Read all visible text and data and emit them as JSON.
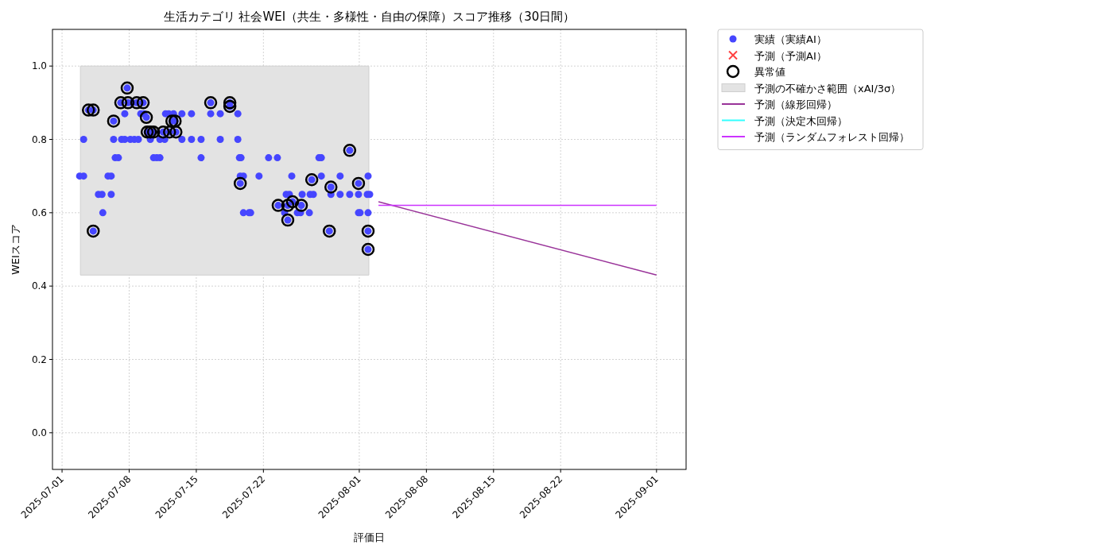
{
  "chart_data": {
    "type": "scatter",
    "title": "生活カテゴリ 社会WEI（共生・多様性・自由の保障）スコア推移（30日間）",
    "xlabel": "評価日",
    "ylabel": "WEIスコア",
    "xlim": [
      "2025-06-30",
      "2025-09-04T02:00"
    ],
    "ylim": [
      -0.1,
      1.1
    ],
    "xticks": [
      {
        "value": "2025-07-01",
        "label": "2025-07-01"
      },
      {
        "value": "2025-07-08",
        "label": "2025-07-08"
      },
      {
        "value": "2025-07-15",
        "label": "2025-07-15"
      },
      {
        "value": "2025-07-22",
        "label": "2025-07-22"
      },
      {
        "value": "2025-08-01",
        "label": "2025-08-01"
      },
      {
        "value": "2025-08-08",
        "label": "2025-08-08"
      },
      {
        "value": "2025-08-15",
        "label": "2025-08-15"
      },
      {
        "value": "2025-08-22",
        "label": "2025-08-22"
      },
      {
        "value": "2025-09-01",
        "label": "2025-09-01"
      }
    ],
    "yticks": [
      {
        "value": 0,
        "label": "0.0"
      },
      {
        "value": 0.2,
        "label": "0.2"
      },
      {
        "value": 0.4,
        "label": "0.4"
      },
      {
        "value": 0.6,
        "label": "0.6"
      },
      {
        "value": 0.8,
        "label": "0.8"
      },
      {
        "value": 1,
        "label": "1.0"
      }
    ],
    "grid": true,
    "legend": "top right",
    "series": [
      {
        "name": "実績（実績AI）",
        "marker": "circle",
        "color": "#4646ff",
        "x": [
          "2025-07-02T20:00",
          "2025-07-03T06:00",
          "2025-07-03T06:00",
          "2025-07-03T18:00",
          "2025-07-04T06:00",
          "2025-07-04T06:00",
          "2025-07-04T19:00",
          "2025-07-05T04:00",
          "2025-07-05T06:00",
          "2025-07-05T19:00",
          "2025-07-06T03:00",
          "2025-07-06T03:00",
          "2025-07-06T09:00",
          "2025-07-06T09:00",
          "2025-07-06T13:00",
          "2025-07-06T21:00",
          "2025-07-07T03:00",
          "2025-07-07T05:00",
          "2025-07-07T13:00",
          "2025-07-07T13:00",
          "2025-07-07T19:00",
          "2025-07-07T21:00",
          "2025-07-08T03:00",
          "2025-07-08T07:00",
          "2025-07-08T13:00",
          "2025-07-08T19:00",
          "2025-07-08T23:00",
          "2025-07-09T05:00",
          "2025-07-09T11:00",
          "2025-07-09T13:00",
          "2025-07-09T19:00",
          "2025-07-09T21:00",
          "2025-07-10T05:00",
          "2025-07-10T05:00",
          "2025-07-10T13:00",
          "2025-07-10T13:00",
          "2025-07-10T21:00",
          "2025-07-11T05:00",
          "2025-07-11T05:00",
          "2025-07-11T13:00",
          "2025-07-11T17:00",
          "2025-07-11T19:00",
          "2025-07-12T03:00",
          "2025-07-12T05:00",
          "2025-07-12T11:00",
          "2025-07-12T15:00",
          "2025-07-12T19:00",
          "2025-07-12T21:00",
          "2025-07-13T12:00",
          "2025-07-13T12:00",
          "2025-07-14T12:00",
          "2025-07-14T12:00",
          "2025-07-15T12:00",
          "2025-07-15T12:00",
          "2025-07-16T12:00",
          "2025-07-16T12:00",
          "2025-07-17T12:00",
          "2025-07-17T12:00",
          "2025-07-18T12:00",
          "2025-07-18T12:00",
          "2025-07-19T08:00",
          "2025-07-19T08:00",
          "2025-07-19T12:00",
          "2025-07-19T14:00",
          "2025-07-19T14:00",
          "2025-07-19T16:00",
          "2025-07-19T22:00",
          "2025-07-19T22:00",
          "2025-07-20T12:00",
          "2025-07-20T16:00",
          "2025-07-21T13:00",
          "2025-07-22T13:00",
          "2025-07-23T11:00",
          "2025-07-23T13:00",
          "2025-07-24T05:00",
          "2025-07-24T09:00",
          "2025-07-24T13:00",
          "2025-07-24T13:00",
          "2025-07-24T17:00",
          "2025-07-24T23:00",
          "2025-07-25T01:00",
          "2025-07-25T13:00",
          "2025-07-25T21:00",
          "2025-07-25T23:00",
          "2025-07-26T01:00",
          "2025-07-26T19:00",
          "2025-07-26T21:00",
          "2025-07-27T01:00",
          "2025-07-27T05:00",
          "2025-07-27T19:00",
          "2025-07-28T01:00",
          "2025-07-28T01:00",
          "2025-07-28T21:00",
          "2025-07-29T01:00",
          "2025-07-29T01:00",
          "2025-07-30T00:00",
          "2025-07-30T00:00",
          "2025-07-31T00:00",
          "2025-07-31T00:00",
          "2025-07-31T22:00",
          "2025-07-31T22:00",
          "2025-07-31T22:00",
          "2025-08-01T02:00",
          "2025-08-01T20:00",
          "2025-08-01T22:00",
          "2025-08-01T22:00",
          "2025-08-01T22:00",
          "2025-08-01T22:00",
          "2025-08-02T02:00"
        ],
        "values": [
          0.7,
          0.7,
          0.8,
          0.88,
          0.88,
          0.55,
          0.65,
          0.65,
          0.6,
          0.7,
          0.7,
          0.65,
          0.85,
          0.8,
          0.75,
          0.75,
          0.9,
          0.8,
          0.87,
          0.8,
          0.94,
          0.9,
          0.8,
          0.9,
          0.8,
          0.9,
          0.8,
          0.87,
          0.9,
          0.87,
          0.86,
          0.82,
          0.8,
          0.82,
          0.75,
          0.82,
          0.75,
          0.75,
          0.8,
          0.82,
          0.8,
          0.87,
          0.87,
          0.82,
          0.85,
          0.87,
          0.85,
          0.82,
          0.87,
          0.8,
          0.87,
          0.8,
          0.8,
          0.75,
          0.9,
          0.87,
          0.87,
          0.8,
          0.9,
          0.89,
          0.87,
          0.8,
          0.75,
          0.7,
          0.68,
          0.75,
          0.7,
          0.6,
          0.6,
          0.6,
          0.7,
          0.75,
          0.75,
          0.62,
          0.6,
          0.65,
          0.58,
          0.62,
          0.65,
          0.7,
          0.63,
          0.6,
          0.6,
          0.62,
          0.65,
          0.6,
          0.65,
          0.69,
          0.65,
          0.75,
          0.75,
          0.7,
          0.55,
          0.67,
          0.65,
          0.7,
          0.65,
          0.77,
          0.65,
          0.68,
          0.65,
          0.6,
          0.6,
          0.65,
          0.7,
          0.6,
          0.55,
          0.5,
          0.65
        ]
      },
      {
        "name": "予測（予測AI）",
        "marker": "cross",
        "color": "#ff4040"
      },
      {
        "name": "異常値",
        "marker": "circle",
        "color": "#000000",
        "x": [
          "2025-07-03T18:00",
          "2025-07-04T06:00",
          "2025-07-04T06:00",
          "2025-07-06T09:00",
          "2025-07-07T03:00",
          "2025-07-07T19:00",
          "2025-07-07T21:00",
          "2025-07-08T19:00",
          "2025-07-09T11:00",
          "2025-07-09T19:00",
          "2025-07-09T21:00",
          "2025-07-10T05:00",
          "2025-07-10T13:00",
          "2025-07-11T13:00",
          "2025-07-12T05:00",
          "2025-07-12T11:00",
          "2025-07-12T19:00",
          "2025-07-12T21:00",
          "2025-07-16T12:00",
          "2025-07-18T12:00",
          "2025-07-18T12:00",
          "2025-07-19T14:00",
          "2025-07-23T13:00",
          "2025-07-24T13:00",
          "2025-07-24T13:00",
          "2025-07-25T01:00",
          "2025-07-25T23:00",
          "2025-07-27T01:00",
          "2025-07-28T21:00",
          "2025-07-29T01:00",
          "2025-07-31T00:00",
          "2025-07-31T22:00",
          "2025-08-01T22:00",
          "2025-08-01T22:00"
        ],
        "values": [
          0.88,
          0.88,
          0.55,
          0.85,
          0.9,
          0.94,
          0.9,
          0.9,
          0.9,
          0.86,
          0.82,
          0.82,
          0.82,
          0.82,
          0.82,
          0.85,
          0.85,
          0.82,
          0.9,
          0.9,
          0.89,
          0.68,
          0.62,
          0.58,
          0.62,
          0.63,
          0.62,
          0.69,
          0.55,
          0.67,
          0.77,
          0.68,
          0.55,
          0.5
        ]
      },
      {
        "name": "予測の不確かさ範囲（xAI/3σ）",
        "type": "line",
        "color": "#e3e3e3",
        "x": [
          "2025-07-02T22:00",
          "2025-08-02"
        ],
        "values": [
          null,
          null
        ],
        "lower": [
          0.43,
          0.43
        ],
        "upper": [
          1.0,
          1.0
        ]
      },
      {
        "name": "予測（線形回帰）",
        "type": "line",
        "color": "#993399",
        "x": [
          "2025-08-03",
          "2025-09-01"
        ],
        "values": [
          0.63,
          0.43
        ]
      },
      {
        "name": "予測（決定木回帰）",
        "type": "line",
        "color": "#33ffff",
        "values": [
          null,
          null
        ]
      },
      {
        "name": "予測（ランダムフォレスト回帰）",
        "type": "line",
        "color": "#cc33ff",
        "x": [
          "2025-08-03",
          "2025-09-01"
        ],
        "values": [
          0.62,
          0.62
        ]
      }
    ]
  }
}
